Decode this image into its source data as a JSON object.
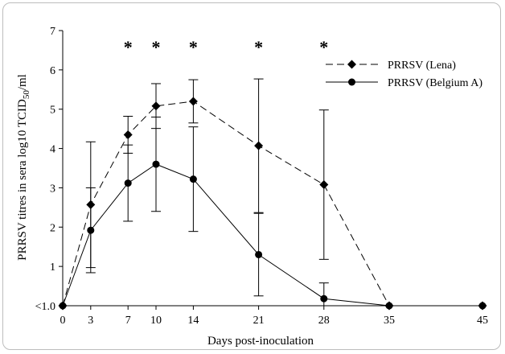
{
  "chart_data": {
    "type": "line",
    "xlabel": "Days post-inoculation",
    "ylabel": "PRRSV titres in sera log10 TCID",
    "ylabel_sub": "50",
    "ylabel_tail": "/ml",
    "x_ticks": [
      "0",
      "3",
      "7",
      "10",
      "14",
      "21",
      "28",
      "35",
      "45"
    ],
    "y_ticks": [
      "<1.0",
      "1",
      "2",
      "3",
      "4",
      "5",
      "6",
      "7"
    ],
    "xlim": [
      0,
      45
    ],
    "ylim": [
      0,
      7
    ],
    "grid": false,
    "legend_position": "top-right",
    "series": [
      {
        "name": "PRRSV (Lena)",
        "marker": "diamond",
        "line_style": "dashed",
        "x": [
          0,
          3,
          7,
          10,
          14,
          21,
          28,
          35,
          45
        ],
        "y": [
          0,
          2.57,
          4.35,
          5.08,
          5.2,
          4.07,
          3.08,
          0,
          0
        ],
        "err": [
          0,
          1.6,
          0.47,
          0.57,
          0.55,
          1.7,
          1.9,
          0,
          0
        ]
      },
      {
        "name": "PRRSV (Belgium A)",
        "marker": "circle",
        "line_style": "solid",
        "x": [
          0,
          3,
          7,
          10,
          14,
          21,
          28,
          35,
          45
        ],
        "y": [
          0,
          1.92,
          3.12,
          3.6,
          3.22,
          1.3,
          0.18,
          0,
          0
        ],
        "err": [
          0,
          1.08,
          0.97,
          1.2,
          1.33,
          1.05,
          0.4,
          0,
          0
        ]
      }
    ],
    "significance": {
      "symbol": "*",
      "x": [
        7,
        10,
        14,
        21,
        28
      ]
    }
  }
}
